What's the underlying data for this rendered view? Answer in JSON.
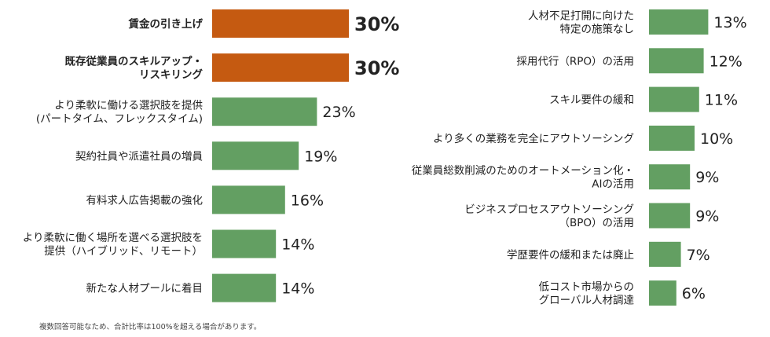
{
  "chart_data": [
    {
      "type": "bar",
      "orientation": "horizontal",
      "xlim": [
        0,
        30
      ],
      "grid": false,
      "categories": [
        [
          "賃金の引き上げ"
        ],
        [
          "既存従業員のスキルアップ・",
          "リスキリング"
        ],
        [
          "より柔軟に働ける選択肢を提供",
          "(パートタイム、フレックスタイム)"
        ],
        [
          "契約社員や派遣社員の増員"
        ],
        [
          "有料求人広告掲載の強化"
        ],
        [
          "より柔軟に働く場所を選べる選択肢を",
          "提供（ハイブリッド、リモート）"
        ],
        [
          "新たな人材プールに着目"
        ]
      ],
      "values": [
        30,
        30,
        23,
        19,
        16,
        14,
        14
      ],
      "value_labels": [
        "30%",
        "30%",
        "23%",
        "19%",
        "16%",
        "14%",
        "14%"
      ],
      "highlight": [
        true,
        true,
        false,
        false,
        false,
        false,
        false
      ]
    },
    {
      "type": "bar",
      "orientation": "horizontal",
      "xlim": [
        0,
        30
      ],
      "grid": false,
      "categories": [
        [
          "人材不足打開に向けた",
          "特定の施策なし"
        ],
        [
          "採用代行（RPO）の活用"
        ],
        [
          "スキル要件の緩和"
        ],
        [
          "より多くの業務を完全にアウトソーシング"
        ],
        [
          "従業員総数削減のためのオートメーション化・",
          "AIの活用"
        ],
        [
          "ビジネスプロセスアウトソーシング",
          "（BPO）の活用"
        ],
        [
          "学歴要件の緩和または廃止"
        ],
        [
          "低コスト市場からの",
          "グローバル人材調達"
        ]
      ],
      "values": [
        13,
        12,
        11,
        10,
        9,
        9,
        7,
        6
      ],
      "value_labels": [
        "13%",
        "12%",
        "11%",
        "10%",
        "9%",
        "9%",
        "7%",
        "6%"
      ],
      "highlight": [
        false,
        false,
        false,
        false,
        false,
        false,
        false,
        false
      ]
    }
  ],
  "colors": {
    "highlight": "#C55A11",
    "normal": "#639F62"
  },
  "footnote": "複数回答可能なため、合計比率は100%を超える場合があります。"
}
